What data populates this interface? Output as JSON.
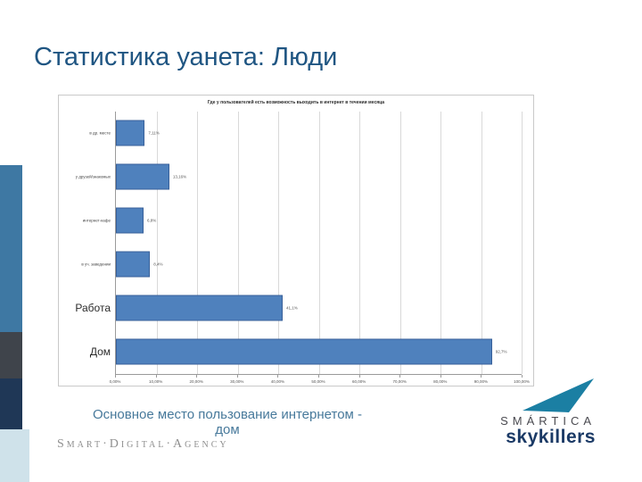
{
  "slide": {
    "title": "Статистика уанета: Люди",
    "caption": "Основное место пользование интернетом - дом"
  },
  "footer": {
    "agency": "Smart·Digital·Agency",
    "logo_top": "SMÁRTICA",
    "logo_bottom": "skykillers"
  },
  "colors": {
    "title_blue": "#1F5582",
    "caption_teal": "#47799B",
    "bar_fill": "#4F81BD",
    "bar_border": "#38609A",
    "stripe_blue": "#3E78A3",
    "stripe_charcoal": "#3F444B",
    "stripe_navy": "#1F3756",
    "stripe_pale": "#CFE2EA",
    "logo_teal": "#1B7FA3",
    "logo_navy": "#1B3A66"
  },
  "chart_data": {
    "type": "bar",
    "orientation": "horizontal",
    "title": "Где у пользователей есть возможность выходить в интернет в течении месяца",
    "categories": [
      "в др. месте",
      "у друзей/знакомых",
      "интернет-кафе",
      "в уч. заведении",
      "Работа",
      "Дом"
    ],
    "values": [
      7.11,
      13.16,
      6.8,
      8.4,
      41.1,
      92.7
    ],
    "value_labels": [
      "7,11%",
      "13,16%",
      "6,8%",
      "8,4%",
      "41,1%",
      "92,7%"
    ],
    "emphasized": [
      false,
      false,
      false,
      false,
      true,
      true
    ],
    "xlabel": "",
    "ylabel": "",
    "xlim": [
      0,
      100
    ],
    "x_ticks": [
      "0,00%",
      "10,00%",
      "20,00%",
      "30,00%",
      "40,00%",
      "50,00%",
      "60,00%",
      "70,00%",
      "80,00%",
      "90,00%",
      "100,00%"
    ],
    "grid": true,
    "legend": false
  }
}
